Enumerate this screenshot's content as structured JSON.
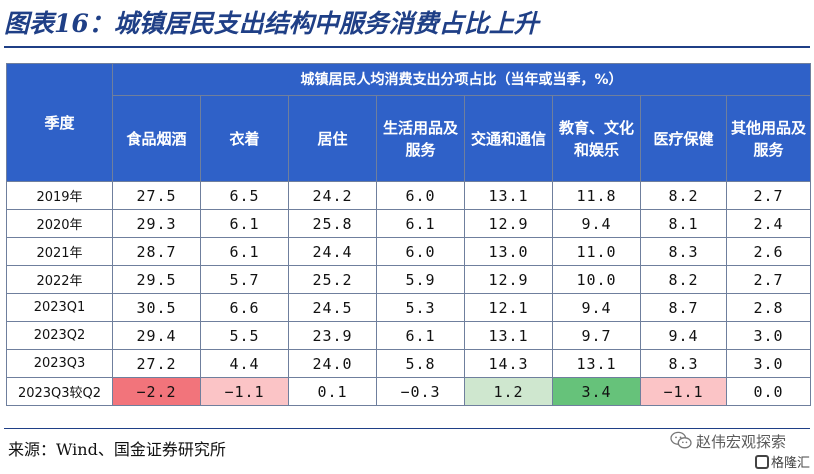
{
  "title": "图表16：城镇居民支出结构中服务消费占比上升",
  "table": {
    "season_header": "季度",
    "group_header": "城镇居民人均消费支出分项占比（当年或当季，%）",
    "columns": [
      "食品烟酒",
      "衣着",
      "居住",
      "生活用品及服务",
      "交通和通信",
      "教育、文化和娱乐",
      "医疗保健",
      "其他用品及服务"
    ],
    "rows": [
      {
        "label": "2019年",
        "values": [
          "27.5",
          "6.5",
          "24.2",
          "6.0",
          "13.1",
          "11.8",
          "8.2",
          "2.7"
        ]
      },
      {
        "label": "2020年",
        "values": [
          "29.3",
          "6.1",
          "25.8",
          "6.1",
          "12.9",
          "9.4",
          "8.1",
          "2.4"
        ]
      },
      {
        "label": "2021年",
        "values": [
          "28.7",
          "6.1",
          "24.4",
          "6.0",
          "13.0",
          "11.0",
          "8.3",
          "2.6"
        ]
      },
      {
        "label": "2022年",
        "values": [
          "29.5",
          "5.7",
          "25.2",
          "5.9",
          "12.9",
          "10.0",
          "8.2",
          "2.7"
        ]
      },
      {
        "label": "2023Q1",
        "values": [
          "30.5",
          "6.6",
          "24.5",
          "5.3",
          "12.1",
          "9.4",
          "8.7",
          "2.8"
        ]
      },
      {
        "label": "2023Q2",
        "values": [
          "29.4",
          "5.5",
          "23.9",
          "6.1",
          "13.1",
          "9.7",
          "9.4",
          "3.0"
        ]
      },
      {
        "label": "2023Q3",
        "values": [
          "27.2",
          "4.4",
          "24.0",
          "5.8",
          "14.3",
          "13.1",
          "8.3",
          "3.0"
        ]
      }
    ],
    "diff_row": {
      "label": "2023Q3较Q2",
      "values": [
        "−2.2",
        "−1.1",
        "0.1",
        "−0.3",
        "1.2",
        "3.4",
        "−1.1",
        "0.0"
      ]
    },
    "colors": {
      "header_bg": "#2f61c8",
      "neg_strong": "#f2747b",
      "neg_light": "#fbc4c6",
      "pos_light": "#cfe7cf",
      "pos_strong": "#66c27a"
    }
  },
  "source": "来源：Wind、国金证券研究所",
  "watermark": {
    "text": "赵伟宏观探索",
    "logo_text": "格隆汇",
    "icon": "wechat-icon"
  }
}
